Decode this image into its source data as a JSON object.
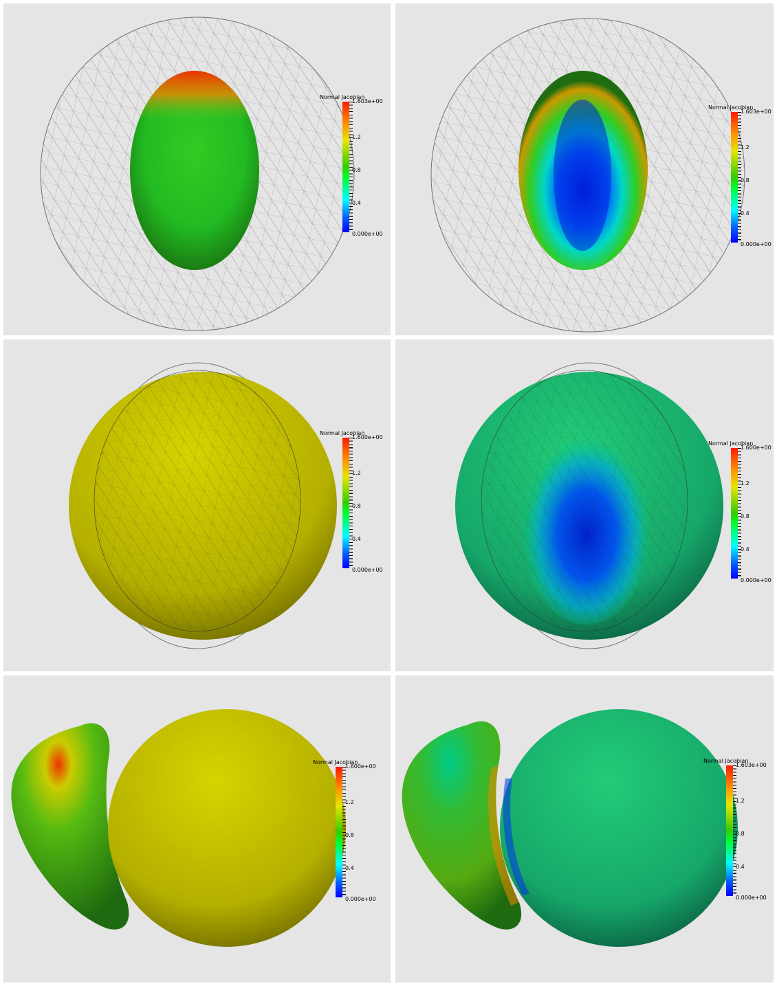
{
  "panels": [
    {
      "id": "p1",
      "colorbar": {
        "title": "Normal Jacobian",
        "max": "1.603e+00",
        "t12": "1.2",
        "t08": "0.8",
        "t04": "0.4",
        "min": "0.000e+00"
      }
    },
    {
      "id": "p2",
      "colorbar": {
        "title": "Normal Jacobian",
        "max": "1.603e+00",
        "t12": "1.2",
        "t08": "0.8",
        "t04": "0.4",
        "min": "0.000e+00"
      }
    },
    {
      "id": "p3",
      "colorbar": {
        "title": "Normal Jacobian",
        "max": "1.600e+00",
        "t12": "1.2",
        "t08": "0.8",
        "t04": "0.4",
        "min": "0.000e+00"
      }
    },
    {
      "id": "p4",
      "colorbar": {
        "title": "Normal Jacobian",
        "max": "1.600e+00",
        "t12": "1.2",
        "t08": "0.8",
        "t04": "0.4",
        "min": "0.000e+00"
      }
    },
    {
      "id": "p5",
      "colorbar": {
        "title": "Normal Jacobian",
        "max": "1.600e+00",
        "t12": "1.2",
        "t08": "0.8",
        "t04": "0.4",
        "min": "0.000e+00"
      }
    },
    {
      "id": "p6",
      "colorbar": {
        "title": "Normal Jacobian",
        "max": "1.603e+00",
        "t12": "1.2",
        "t08": "0.8",
        "t04": "0.4",
        "min": "0.000e+00"
      }
    }
  ],
  "colors": {
    "background": "#e5e5e5",
    "colormap": [
      "#0000ff",
      "#00ffff",
      "#00ff33",
      "#e6e600",
      "#ff1a00"
    ]
  }
}
